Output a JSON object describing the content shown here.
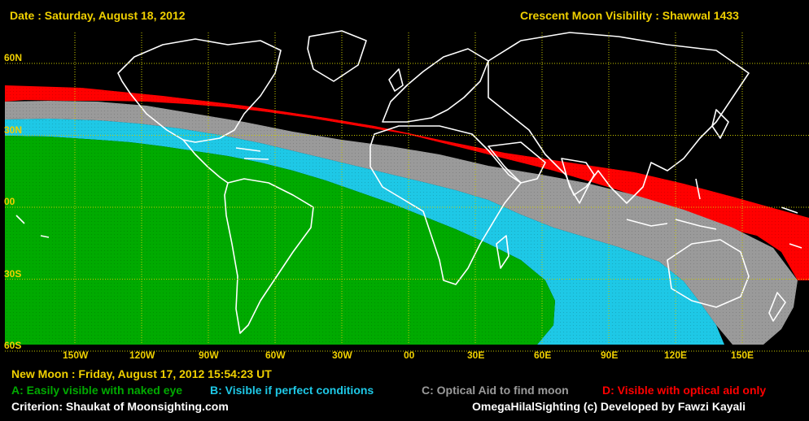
{
  "header": {
    "date": "Date : Saturday, August 18, 2012",
    "title": "Crescent Moon Visibility : Shawwal  1433"
  },
  "footer": {
    "new_moon": "New Moon : Friday, August 17, 2012  15:54:23  UT",
    "criterion": "Criterion: Shaukat of Moonsighting.com",
    "credit": "OmegaHilalSighting  (c)  Developed by Fawzi Kayali"
  },
  "legend": {
    "a": {
      "label": "A: Easily visible with naked eye",
      "color": "#00aa00"
    },
    "b": {
      "label": "B: Visible if perfect conditions",
      "color": "#1ec8e6"
    },
    "c": {
      "label": "C: Optical Aid to find moon",
      "color": "#9a9a9a"
    },
    "d": {
      "label": "D: Visible with optical aid only",
      "color": "#ff0000"
    }
  },
  "map": {
    "lat_labels": [
      {
        "text": "60N",
        "lat": 60
      },
      {
        "text": "30N",
        "lat": 30
      },
      {
        "text": "00",
        "lat": 0
      },
      {
        "text": "30S",
        "lat": -30
      },
      {
        "text": "60S",
        "lat": -60
      }
    ],
    "lon_labels": [
      {
        "text": "150W",
        "lon": -150
      },
      {
        "text": "120W",
        "lon": -120
      },
      {
        "text": "90W",
        "lon": -90
      },
      {
        "text": "60W",
        "lon": -60
      },
      {
        "text": "30W",
        "lon": -30
      },
      {
        "text": "00",
        "lon": 0
      },
      {
        "text": "30E",
        "lon": 30
      },
      {
        "text": "60E",
        "lon": 60
      },
      {
        "text": "90E",
        "lon": 90
      },
      {
        "text": "120E",
        "lon": 120
      },
      {
        "text": "150E",
        "lon": 150
      }
    ],
    "colors": {
      "background": "#000000",
      "grid": "#c8c800",
      "coast": "#ffffff",
      "label": "#f0d000"
    }
  }
}
